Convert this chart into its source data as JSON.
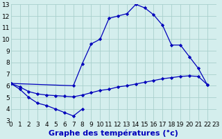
{
  "xlabel": "Graphe des températures (°c)",
  "bg_color": "#d4eeed",
  "line_color": "#0000bb",
  "grid_color": "#a8d0cc",
  "xlim": [
    0,
    23
  ],
  "ylim": [
    3,
    13
  ],
  "xticks": [
    0,
    1,
    2,
    3,
    4,
    5,
    6,
    7,
    8,
    9,
    10,
    11,
    12,
    13,
    14,
    15,
    16,
    17,
    18,
    19,
    20,
    21,
    22,
    23
  ],
  "yticks": [
    3,
    4,
    5,
    6,
    7,
    8,
    9,
    10,
    11,
    12,
    13
  ],
  "line1_x": [
    0,
    1,
    2,
    3,
    4,
    5,
    6,
    7,
    8
  ],
  "line1_y": [
    6.2,
    5.7,
    5.0,
    4.5,
    4.3,
    4.0,
    3.7,
    3.4,
    4.0
  ],
  "line2_x": [
    0,
    7,
    8,
    9,
    10,
    11,
    12,
    13,
    14,
    15,
    16,
    17,
    18,
    19,
    20,
    21,
    22
  ],
  "line2_y": [
    6.2,
    6.0,
    7.9,
    9.6,
    10.0,
    11.8,
    12.0,
    12.2,
    13.0,
    12.7,
    12.1,
    11.2,
    9.5,
    9.5,
    8.5,
    7.5,
    6.1
  ],
  "line3_x": [
    0,
    1,
    2,
    3,
    4,
    5,
    6,
    7,
    8,
    9,
    10,
    11,
    12,
    13,
    14,
    15,
    16,
    17,
    18,
    19,
    20,
    21,
    22
  ],
  "line3_y": [
    6.2,
    5.9,
    5.5,
    5.3,
    5.2,
    5.15,
    5.1,
    5.05,
    5.2,
    5.4,
    5.6,
    5.7,
    5.9,
    6.0,
    6.15,
    6.3,
    6.45,
    6.6,
    6.7,
    6.8,
    6.85,
    6.8,
    6.1
  ],
  "xlabel_fontsize": 8,
  "tick_fontsize": 6.5
}
